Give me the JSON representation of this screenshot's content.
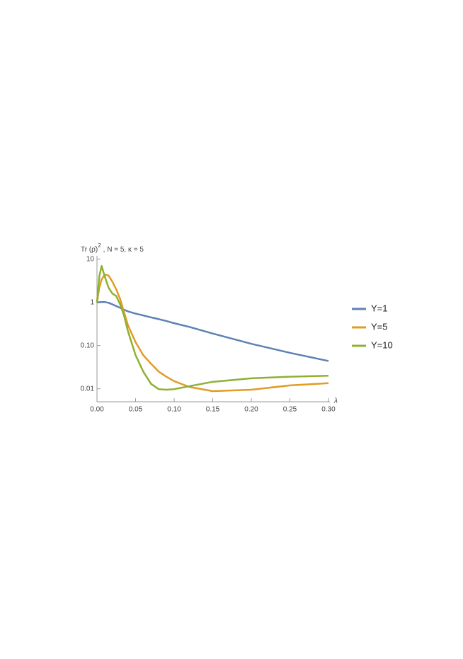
{
  "chart_data": {
    "type": "line",
    "y_label": "Tr (ρ̂)",
    "y_label_sup": "2",
    "y_label_rest": ", N = 5, κ = 5",
    "x_label": "λ",
    "x": [
      0,
      0.003,
      0.006,
      0.01,
      0.015,
      0.02,
      0.025,
      0.03,
      0.035,
      0.04,
      0.05,
      0.06,
      0.07,
      0.08,
      0.09,
      0.1,
      0.12,
      0.15,
      0.2,
      0.25,
      0.3
    ],
    "series": [
      {
        "name": "Y=1",
        "color": "#5e81b5",
        "values": [
          1,
          1.01,
          1.02,
          1.02,
          0.98,
          0.9,
          0.82,
          0.75,
          0.68,
          0.62,
          0.55,
          0.5,
          0.45,
          0.41,
          0.37,
          0.33,
          0.27,
          0.19,
          0.11,
          0.068,
          0.044
        ]
      },
      {
        "name": "Y=5",
        "color": "#e19c24",
        "values": [
          1,
          2.2,
          3.4,
          4.4,
          4.2,
          3.0,
          2.0,
          1.2,
          0.6,
          0.3,
          0.12,
          0.06,
          0.038,
          0.025,
          0.019,
          0.015,
          0.011,
          0.0088,
          0.0095,
          0.012,
          0.0135
        ]
      },
      {
        "name": "Y=10",
        "color": "#8fb032",
        "values": [
          1,
          4,
          7,
          4,
          2.2,
          1.6,
          1.4,
          0.9,
          0.5,
          0.22,
          0.06,
          0.025,
          0.013,
          0.0098,
          0.0095,
          0.0098,
          0.0115,
          0.0145,
          0.0175,
          0.019,
          0.02
        ]
      }
    ],
    "xlim": [
      0,
      0.3
    ],
    "xticks": [
      {
        "value": 0,
        "label": "0.00"
      },
      0.05,
      {
        "value": 0.1,
        "label": "0.10"
      },
      0.15,
      {
        "value": 0.2,
        "label": "0.20"
      },
      0.25,
      {
        "value": 0.3,
        "label": "0.30"
      }
    ],
    "ylim": [
      0.005,
      12
    ],
    "yticks": [
      10,
      1,
      {
        "value": 0.1,
        "label": "0.10"
      },
      0.01
    ],
    "log_y": true,
    "legend": "right"
  }
}
